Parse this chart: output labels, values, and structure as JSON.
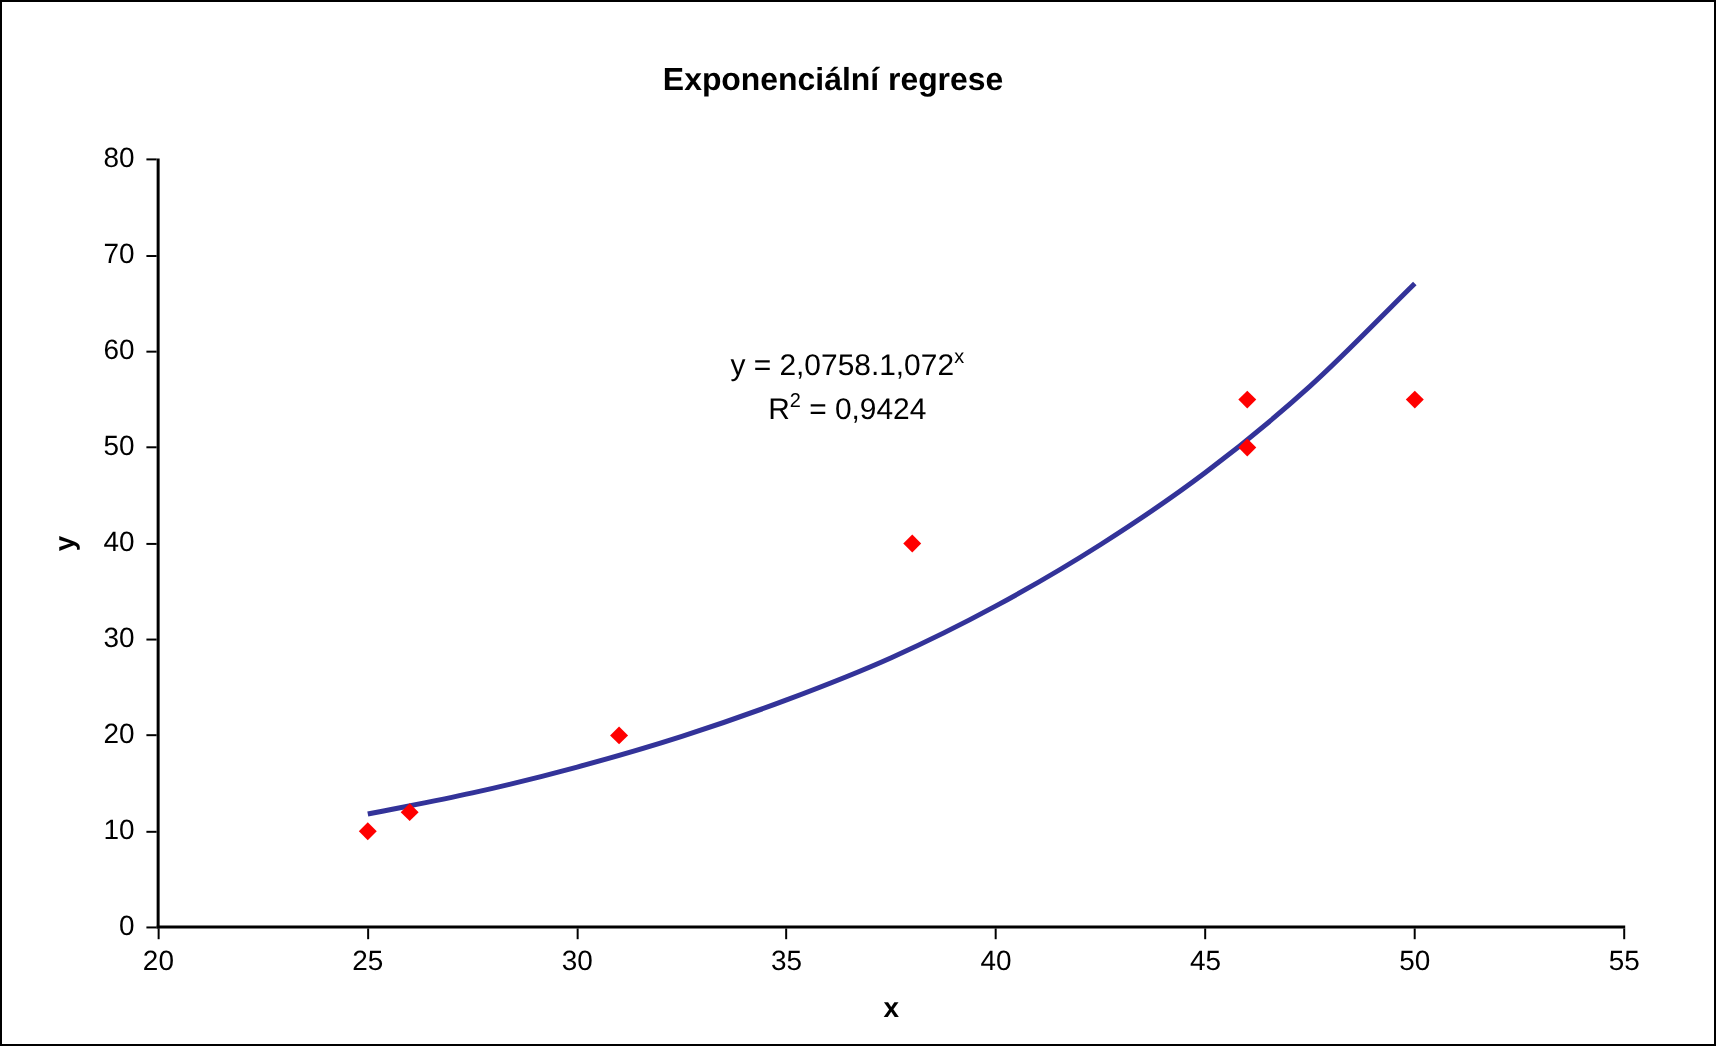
{
  "chart_data": {
    "type": "scatter",
    "title": "Exponenciální regrese",
    "xlabel": "x",
    "ylabel": "y",
    "x": [
      25,
      26,
      31,
      38,
      46,
      46,
      50
    ],
    "series": [
      {
        "type": "scatter",
        "color": "#ff0000",
        "marker": "diamond",
        "values": [
          10,
          12,
          20,
          40,
          55,
          50,
          55
        ]
      },
      {
        "type": "line",
        "color": "#333399",
        "marker": "none",
        "x": [
          25,
          27.5,
          30,
          32.5,
          35,
          37.5,
          40,
          42.5,
          45,
          47.5,
          50
        ],
        "values": [
          11.8,
          14,
          16.7,
          19.9,
          23.7,
          28.1,
          33.5,
          39.9,
          47.4,
          56.4,
          67.1
        ]
      }
    ],
    "xlim": [
      20,
      55
    ],
    "xticks": [
      20,
      25,
      30,
      35,
      40,
      45,
      50,
      55
    ],
    "ylim": [
      0,
      80
    ],
    "yticks": [
      0,
      10,
      20,
      30,
      40,
      50,
      60,
      70,
      80
    ],
    "grid": false,
    "legend": false,
    "annotations": [
      "y = 2,0758.1,072$^{x}$",
      "R$^{2}$ = 0,9424"
    ]
  }
}
